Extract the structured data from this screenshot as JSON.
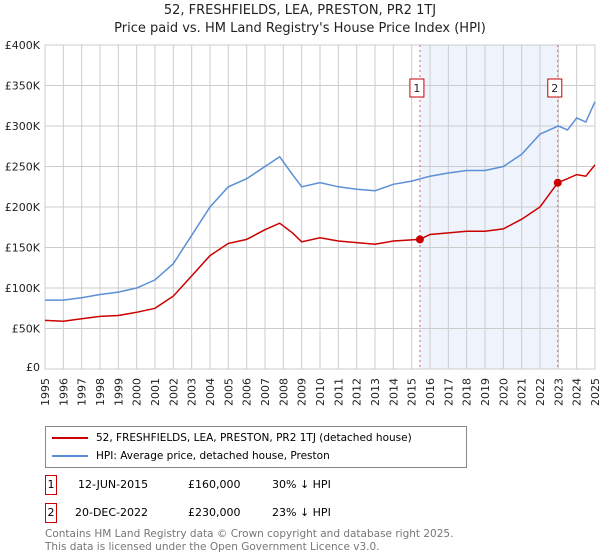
{
  "title": "52, FRESHFIELDS, LEA, PRESTON, PR2 1TJ",
  "subtitle": "Price paid vs. HM Land Registry's House Price Index (HPI)",
  "chart_data": {
    "type": "line",
    "xlim": [
      1995,
      2025
    ],
    "ylim": [
      0,
      400000
    ],
    "yticks": [
      {
        "v": 0,
        "label": "£0"
      },
      {
        "v": 50000,
        "label": "£50K"
      },
      {
        "v": 100000,
        "label": "£100K"
      },
      {
        "v": 150000,
        "label": "£150K"
      },
      {
        "v": 200000,
        "label": "£200K"
      },
      {
        "v": 250000,
        "label": "£250K"
      },
      {
        "v": 300000,
        "label": "£300K"
      },
      {
        "v": 350000,
        "label": "£350K"
      },
      {
        "v": 400000,
        "label": "£400K"
      }
    ],
    "xticks": [
      "1995",
      "1996",
      "1997",
      "1998",
      "1999",
      "2000",
      "2001",
      "2002",
      "2003",
      "2004",
      "2005",
      "2006",
      "2007",
      "2008",
      "2009",
      "2010",
      "2011",
      "2012",
      "2013",
      "2014",
      "2015",
      "2016",
      "2017",
      "2018",
      "2019",
      "2020",
      "2021",
      "2022",
      "2023",
      "2024",
      "2025"
    ],
    "series": [
      {
        "name": "52, FRESHFIELDS, LEA, PRESTON, PR2 1TJ (detached house)",
        "color": "#cc0000",
        "x": [
          1995,
          1996,
          1997,
          1998,
          1999,
          2000,
          2001,
          2002,
          2003,
          2004,
          2005,
          2006,
          2007,
          2007.8,
          2008.5,
          2009,
          2010,
          2011,
          2012,
          2013,
          2014,
          2015.45,
          2016,
          2017,
          2018,
          2019,
          2020,
          2021,
          2022,
          2022.97,
          2023.5,
          2024,
          2024.5,
          2025
        ],
        "y": [
          60000,
          59000,
          62000,
          65000,
          66000,
          70000,
          75000,
          90000,
          115000,
          140000,
          155000,
          160000,
          172000,
          180000,
          168000,
          157000,
          162000,
          158000,
          156000,
          154000,
          158000,
          160000,
          166000,
          168000,
          170000,
          170000,
          173000,
          185000,
          200000,
          230000,
          235000,
          240000,
          238000,
          252000
        ]
      },
      {
        "name": "HPI: Average price, detached house, Preston",
        "color": "#5b8fd6",
        "x": [
          1995,
          1996,
          1997,
          1998,
          1999,
          2000,
          2001,
          2002,
          2003,
          2004,
          2005,
          2006,
          2007,
          2007.8,
          2008.5,
          2009,
          2010,
          2011,
          2012,
          2013,
          2014,
          2015,
          2016,
          2017,
          2018,
          2019,
          2020,
          2021,
          2022,
          2023,
          2023.5,
          2024,
          2024.5,
          2025
        ],
        "y": [
          85000,
          85000,
          88000,
          92000,
          95000,
          100000,
          110000,
          130000,
          165000,
          200000,
          225000,
          235000,
          250000,
          262000,
          240000,
          225000,
          230000,
          225000,
          222000,
          220000,
          228000,
          232000,
          238000,
          242000,
          245000,
          245000,
          250000,
          265000,
          290000,
          300000,
          295000,
          310000,
          305000,
          330000
        ]
      }
    ],
    "sales": [
      {
        "label": "1",
        "x": 2015.45,
        "y": 160000
      },
      {
        "label": "2",
        "x": 2022.97,
        "y": 230000
      }
    ],
    "shade": [
      2015.45,
      2022.97
    ]
  },
  "transactions": [
    {
      "num": "1",
      "date": "12-JUN-2015",
      "price": "£160,000",
      "hpi": "30% ↓ HPI"
    },
    {
      "num": "2",
      "date": "20-DEC-2022",
      "price": "£230,000",
      "hpi": "23% ↓ HPI"
    }
  ],
  "footer": [
    "Contains HM Land Registry data © Crown copyright and database right 2025.",
    "This data is licensed under the Open Government Licence v3.0."
  ]
}
